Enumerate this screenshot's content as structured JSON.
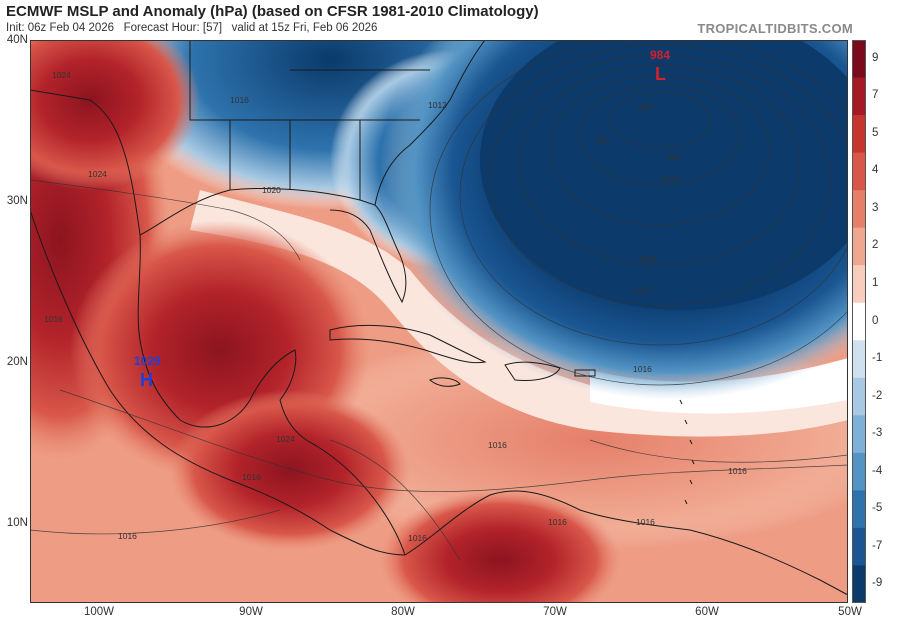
{
  "header": {
    "title": "ECMWF MSLP and Anomaly (hPa) (based on CFSR 1981-2010 Climatology)",
    "subtitle": "Init: 06z Feb 04 2026   Forecast Hour: [57]   valid at 15z Fri, Feb 06 2026",
    "brand": "TROPICALTIDBITS.COM"
  },
  "axes": {
    "lat_labels": [
      "40N",
      "30N",
      "20N",
      "10N"
    ],
    "lon_labels": [
      "100W",
      "90W",
      "80W",
      "70W",
      "60W",
      "50W"
    ]
  },
  "colorbar": {
    "labels": [
      "9",
      "7",
      "5",
      "4",
      "3",
      "2",
      "1",
      "0",
      "-1",
      "-2",
      "-3",
      "-4",
      "-5",
      "-7",
      "-9"
    ],
    "colors": [
      "#7a0a1c",
      "#a41a25",
      "#c6352e",
      "#d8574a",
      "#e57f6a",
      "#f0a78f",
      "#f7cdbd",
      "#ffffff",
      "#cfe0ef",
      "#a7c9e3",
      "#7fb0d6",
      "#5394c4",
      "#2e73ad",
      "#1a5692",
      "#0b3a6b"
    ]
  },
  "systems": [
    {
      "type": "L",
      "pressure": "984",
      "color": "#d2202f"
    },
    {
      "type": "H",
      "pressure": "1029",
      "color": "#1f3fd6"
    }
  ],
  "isobar_labels": [
    "1024",
    "1016",
    "1012",
    "1024",
    "1020",
    "988",
    "992",
    "996",
    "1000",
    "1008",
    "1012",
    "1016",
    "1016",
    "1016",
    "1016",
    "1016",
    "1016",
    "1024",
    "1016",
    "1016",
    "1016"
  ]
}
